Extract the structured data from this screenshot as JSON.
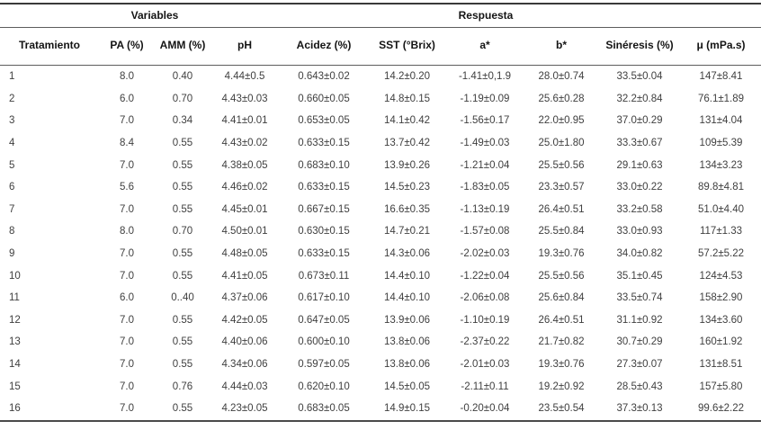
{
  "table": {
    "groups": [
      {
        "label": "",
        "span": 1
      },
      {
        "label": "Variables",
        "span": 2
      },
      {
        "label": "Respuesta",
        "span": 7
      }
    ],
    "columns": [
      "Tratamiento",
      "PA (%)",
      "AMM (%)",
      "pH",
      "Acidez (%)",
      "SST (°Brix)",
      "a*",
      "b*",
      "Sinéresis (%)",
      "μ (mPa.s)"
    ],
    "rows": [
      [
        "1",
        "8.0",
        "0.40",
        "4.44±0.5",
        "0.643±0.02",
        "14.2±0.20",
        "-1.41±0,1.9",
        "28.0±0.74",
        "33.5±0.04",
        "147±8.41"
      ],
      [
        "2",
        "6.0",
        "0.70",
        "4.43±0.03",
        "0.660±0.05",
        "14.8±0.15",
        "-1.19±0.09",
        "25.6±0.28",
        "32.2±0.84",
        "76.1±1.89"
      ],
      [
        "3",
        "7.0",
        "0.34",
        "4.41±0.01",
        "0.653±0.05",
        "14.1±0.42",
        "-1.56±0.17",
        "22.0±0.95",
        "37.0±0.29",
        "131±4.04"
      ],
      [
        "4",
        "8.4",
        "0.55",
        "4.43±0.02",
        "0.633±0.15",
        "13.7±0.42",
        "-1.49±0.03",
        "25.0±1.80",
        "33.3±0.67",
        "109±5.39"
      ],
      [
        "5",
        "7.0",
        "0.55",
        "4.38±0.05",
        "0.683±0.10",
        "13.9±0.26",
        "-1.21±0.04",
        "25.5±0.56",
        "29.1±0.63",
        "134±3.23"
      ],
      [
        "6",
        "5.6",
        "0.55",
        "4.46±0.02",
        "0.633±0.15",
        "14.5±0.23",
        "-1.83±0.05",
        "23.3±0.57",
        "33.0±0.22",
        "89.8±4.81"
      ],
      [
        "7",
        "7.0",
        "0.55",
        "4.45±0.01",
        "0.667±0.15",
        "16.6±0.35",
        "-1.13±0.19",
        "26.4±0.51",
        "33.2±0.58",
        "51.0±4.40"
      ],
      [
        "8",
        "8.0",
        "0.70",
        "4.50±0.01",
        "0.630±0.15",
        "14.7±0.21",
        "-1.57±0.08",
        "25.5±0.84",
        "33.0±0.93",
        "117±1.33"
      ],
      [
        "9",
        "7.0",
        "0.55",
        "4.48±0.05",
        "0.633±0.15",
        "14.3±0.06",
        "-2.02±0.03",
        "19.3±0.76",
        "34.0±0.82",
        "57.2±5.22"
      ],
      [
        "10",
        "7.0",
        "0.55",
        "4.41±0.05",
        "0.673±0.11",
        "14.4±0.10",
        "-1.22±0.04",
        "25.5±0.56",
        "35.1±0.45",
        "124±4.53"
      ],
      [
        "11",
        "6.0",
        "0..40",
        "4.37±0.06",
        "0.617±0.10",
        "14.4±0.10",
        "-2.06±0.08",
        "25.6±0.84",
        "33.5±0.74",
        "158±2.90"
      ],
      [
        "12",
        "7.0",
        "0.55",
        "4.42±0.05",
        "0.647±0.05",
        "13.9±0.06",
        "-1.10±0.19",
        "26.4±0.51",
        "31.1±0.92",
        "134±3.60"
      ],
      [
        "13",
        "7.0",
        "0.55",
        "4.40±0.06",
        "0.600±0.10",
        "13.8±0.06",
        "-2.37±0.22",
        "21.7±0.82",
        "30.7±0.29",
        "160±1.92"
      ],
      [
        "14",
        "7.0",
        "0.55",
        "4.34±0.06",
        "0.597±0.05",
        "13.8±0.06",
        "-2.01±0.03",
        "19.3±0.76",
        "27.3±0.07",
        "131±8.51"
      ],
      [
        "15",
        "7.0",
        "0.76",
        "4.44±0.03",
        "0.620±0.10",
        "14.5±0.05",
        "-2.11±0.11",
        "19.2±0.92",
        "28.5±0.43",
        "157±5.80"
      ],
      [
        "16",
        "7.0",
        "0.55",
        "4.23±0.05",
        "0.683±0.05",
        "14.9±0.15",
        "-0.20±0.04",
        "23.5±0.54",
        "37.3±0.13",
        "99.6±2.22"
      ]
    ]
  }
}
